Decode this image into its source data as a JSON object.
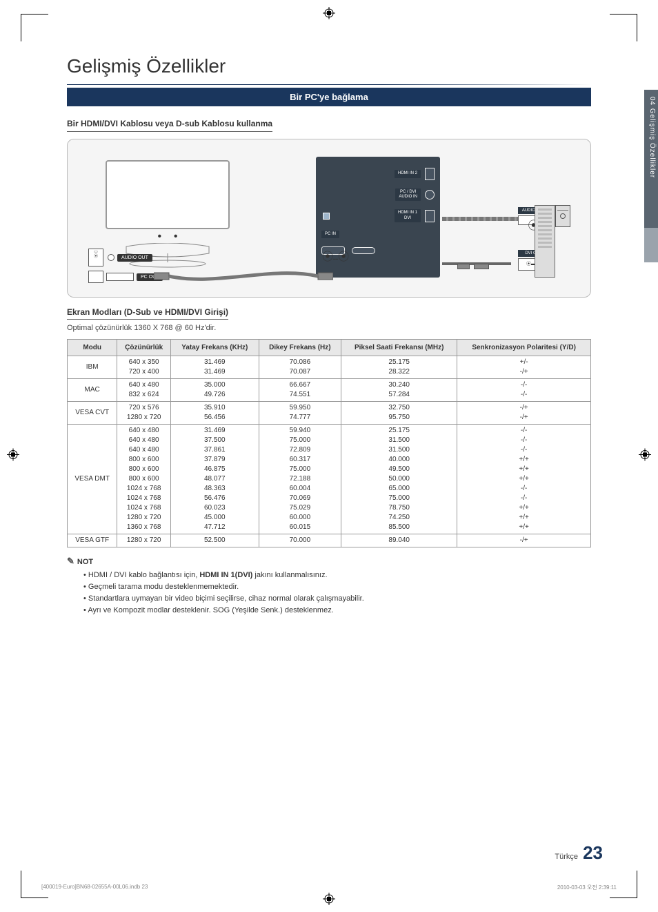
{
  "page_title": "Gelişmiş Özellikler",
  "section_bar": "Bir PC'ye bağlama",
  "subhead1": "Bir HDMI/DVI Kablosu veya D-sub Kablosu kullanma",
  "diagram": {
    "labels": {
      "audio_out_l": "AUDIO OUT",
      "pc_out": "PC OUT",
      "hdmi_in2": "HDMI IN 2",
      "pc_dvi_audio_in": "PC / DVI\nAUDIO IN",
      "pc_in": "PC IN",
      "hdmi_in1_dvi": "HDMI IN 1\nDVI",
      "audio_out_r": "AUDIO OUT",
      "dvi_out": "DVI OUT"
    }
  },
  "subhead2": "Ekran Modları (D-Sub ve HDMI/DVI Girişi)",
  "optimal_line": "Optimal çözünürlük 1360 X 768 @ 60 Hz'dir.",
  "table": {
    "headers": [
      "Modu",
      "Çözünürlük",
      "Yatay Frekans (KHz)",
      "Dikey Frekans (Hz)",
      "Piksel Saati Frekansı (MHz)",
      "Senkronizasyon Polaritesi (Y/D)"
    ],
    "rows": [
      {
        "mode": "IBM",
        "res": [
          "640 x 350",
          "720 x 400"
        ],
        "h": [
          "31.469",
          "31.469"
        ],
        "v": [
          "70.086",
          "70.087"
        ],
        "p": [
          "25.175",
          "28.322"
        ],
        "s": [
          "+/-",
          "-/+"
        ]
      },
      {
        "mode": "MAC",
        "res": [
          "640 x 480",
          "832 x 624"
        ],
        "h": [
          "35.000",
          "49.726"
        ],
        "v": [
          "66.667",
          "74.551"
        ],
        "p": [
          "30.240",
          "57.284"
        ],
        "s": [
          "-/-",
          "-/-"
        ]
      },
      {
        "mode": "VESA CVT",
        "res": [
          "720 x 576",
          "1280 x 720"
        ],
        "h": [
          "35.910",
          "56.456"
        ],
        "v": [
          "59.950",
          "74.777"
        ],
        "p": [
          "32.750",
          "95.750"
        ],
        "s": [
          "-/+",
          "-/+"
        ]
      },
      {
        "mode": "VESA DMT",
        "res": [
          "640 x 480",
          "640 x 480",
          "640 x 480",
          "800 x 600",
          "800 x 600",
          "800 x 600",
          "1024 x 768",
          "1024 x 768",
          "1024 x 768",
          "1280 x 720",
          "1360 x 768"
        ],
        "h": [
          "31.469",
          "37.500",
          "37.861",
          "37.879",
          "46.875",
          "48.077",
          "48.363",
          "56.476",
          "60.023",
          "45.000",
          "47.712"
        ],
        "v": [
          "59.940",
          "75.000",
          "72.809",
          "60.317",
          "75.000",
          "72.188",
          "60.004",
          "70.069",
          "75.029",
          "60.000",
          "60.015"
        ],
        "p": [
          "25.175",
          "31.500",
          "31.500",
          "40.000",
          "49.500",
          "50.000",
          "65.000",
          "75.000",
          "78.750",
          "74.250",
          "85.500"
        ],
        "s": [
          "-/-",
          "-/-",
          "-/-",
          "+/+",
          "+/+",
          "+/+",
          "-/-",
          "-/-",
          "+/+",
          "+/+",
          "+/+"
        ]
      },
      {
        "mode": "VESA GTF",
        "res": [
          "1280 x 720"
        ],
        "h": [
          "52.500"
        ],
        "v": [
          "70.000"
        ],
        "p": [
          "89.040"
        ],
        "s": [
          "-/+"
        ]
      }
    ]
  },
  "notes": {
    "head": "NOT",
    "items": [
      {
        "pre": "HDMI / DVI kablo bağlantısı için, ",
        "bold": "HDMI IN 1(DVI)",
        "post": " jakını kullanmalısınız."
      },
      {
        "pre": "Geçmeli tarama modu desteklenmemektedir.",
        "bold": "",
        "post": ""
      },
      {
        "pre": "Standartlara uymayan bir video biçimi seçilirse, cihaz normal olarak çalışmayabilir.",
        "bold": "",
        "post": ""
      },
      {
        "pre": "Ayrı ve Kompozit modlar desteklenir. SOG (Yeşilde Senk.) desteklenmez.",
        "bold": "",
        "post": ""
      }
    ]
  },
  "side_tab": "04  Gelişmiş Özellikler",
  "footer": {
    "lang": "Türkçe",
    "page": "23"
  },
  "print": {
    "left": "[400019-Euro]BN68-02655A-00L06.indb   23",
    "right": "2010-03-03   오전 2:39:11"
  }
}
